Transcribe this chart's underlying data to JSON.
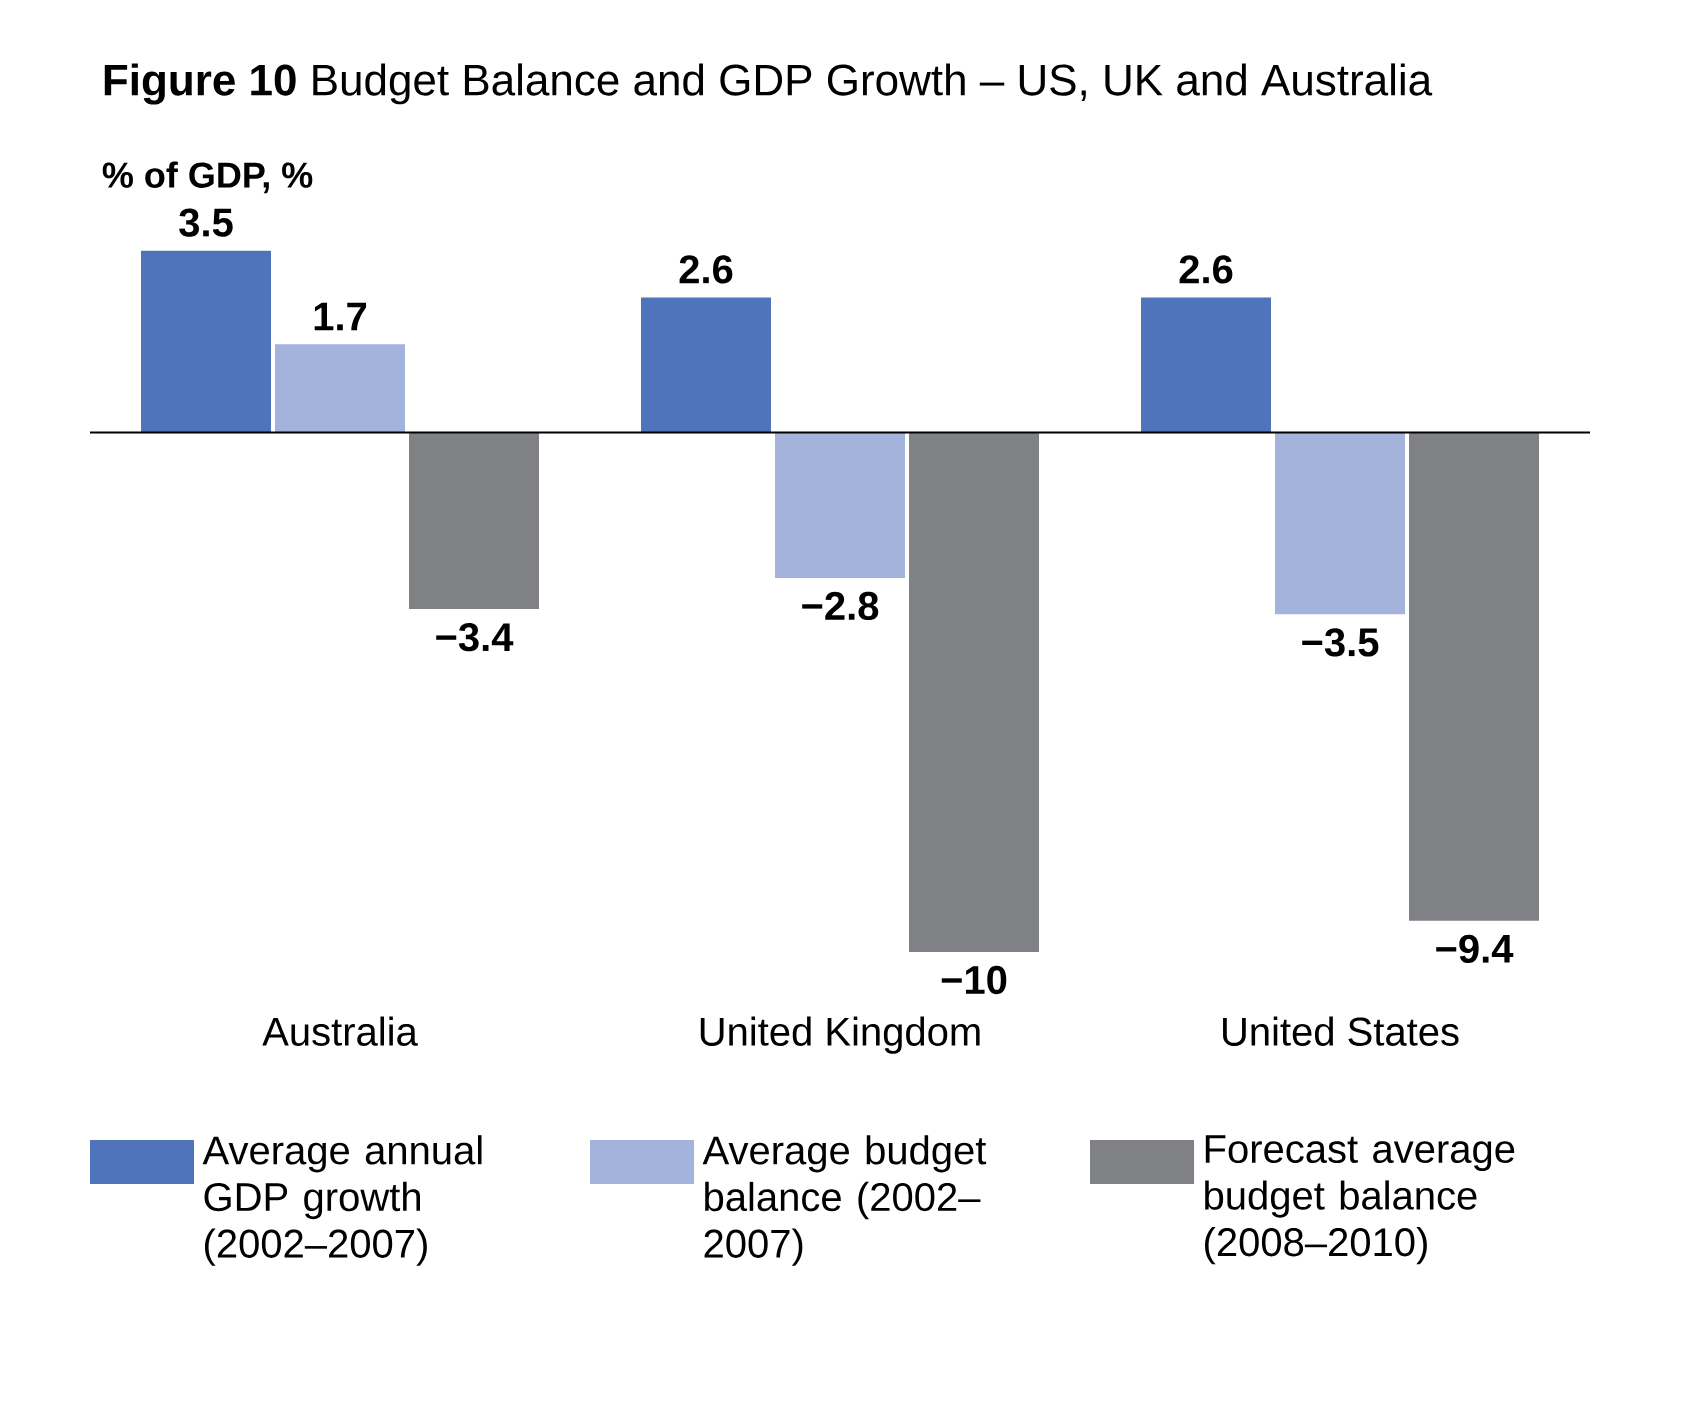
{
  "chart_data": {
    "type": "bar",
    "title": "**Figure 10**  Budget Balance and GDP Growth – US, UK and Australia",
    "ylabel": "% of GDP, %",
    "categories": [
      "Australia",
      "United Kingdom",
      "United States"
    ],
    "series": [
      {
        "name": "Average annual GDP growth (2002–2007)",
        "color": "#4f74bb",
        "values": [
          3.5,
          2.6,
          2.6
        ],
        "value_labels": [
          "3.5",
          "2.6",
          "2.6"
        ]
      },
      {
        "name": "Average budget balance (2002–2007)",
        "color": "#a3b3dc",
        "values": [
          1.7,
          -2.8,
          -3.5
        ],
        "value_labels": [
          "1.7",
          "−2.8",
          "−3.5"
        ]
      },
      {
        "name": "Forecast average budget balance (2008–2010)",
        "color": "#808184",
        "values": [
          -3.4,
          -10,
          -9.4
        ],
        "value_labels": [
          "−3.4",
          "−10",
          "−9.4"
        ]
      }
    ],
    "tick_labels": "x",
    "legend": "bottom"
  }
}
